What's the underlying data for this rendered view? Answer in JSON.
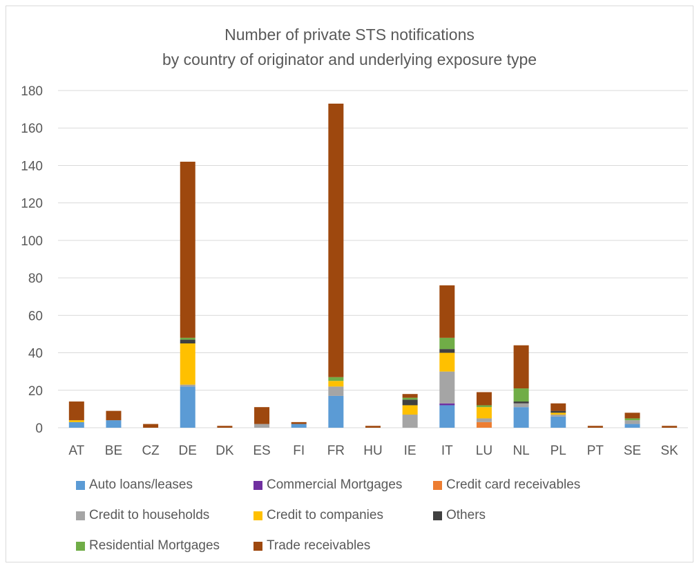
{
  "chart_data": {
    "type": "bar",
    "stacked": true,
    "title_line1": "Number of private STS notifications",
    "title_line2": "by country of originator and underlying exposure type",
    "xlabel": "",
    "ylabel": "",
    "ylim": [
      0,
      180
    ],
    "yticks": [
      0,
      20,
      40,
      60,
      80,
      100,
      120,
      140,
      160,
      180
    ],
    "grid": true,
    "legend_position": "bottom",
    "categories": [
      "AT",
      "BE",
      "CZ",
      "DE",
      "DK",
      "ES",
      "FI",
      "FR",
      "HU",
      "IE",
      "IT",
      "LU",
      "NL",
      "PL",
      "PT",
      "SE",
      "SK"
    ],
    "series": [
      {
        "name": "Auto loans/leases",
        "color": "#5b9bd5",
        "values": [
          3,
          4,
          0,
          22,
          0,
          0,
          2,
          17,
          0,
          0,
          12,
          0,
          11,
          6,
          0,
          2,
          0
        ]
      },
      {
        "name": "Commercial Mortgages",
        "color": "#7030a0",
        "values": [
          0,
          0,
          0,
          0,
          0,
          0,
          0,
          0,
          0,
          0,
          1,
          0,
          0,
          0,
          0,
          0,
          0
        ]
      },
      {
        "name": "Credit card receivables",
        "color": "#ed7d31",
        "values": [
          0,
          0,
          0,
          0,
          0,
          0,
          0,
          0,
          0,
          0,
          0,
          3,
          0,
          0,
          0,
          0,
          0
        ]
      },
      {
        "name": "Credit to households",
        "color": "#a5a5a5",
        "values": [
          0,
          0,
          0,
          1,
          0,
          2,
          0,
          5,
          0,
          7,
          17,
          2,
          2,
          1,
          0,
          2,
          0
        ]
      },
      {
        "name": "Credit to companies",
        "color": "#ffc000",
        "values": [
          1,
          0,
          0,
          22,
          0,
          0,
          0,
          3,
          0,
          5,
          10,
          6,
          0,
          1,
          0,
          0,
          0
        ]
      },
      {
        "name": "Others",
        "color": "#404040",
        "values": [
          0,
          0,
          0,
          2,
          0,
          0,
          0,
          0,
          0,
          3,
          2,
          0,
          1,
          1,
          0,
          0,
          0
        ]
      },
      {
        "name": "Residential Mortgages",
        "color": "#70ad47",
        "values": [
          0,
          0,
          0,
          1,
          0,
          0,
          0,
          2,
          0,
          1,
          6,
          1,
          7,
          0,
          0,
          1,
          0
        ]
      },
      {
        "name": "Trade receivables",
        "color": "#9e480e",
        "values": [
          10,
          5,
          2,
          94,
          1,
          9,
          1,
          146,
          1,
          2,
          28,
          7,
          23,
          4,
          1,
          3,
          1
        ]
      }
    ]
  }
}
